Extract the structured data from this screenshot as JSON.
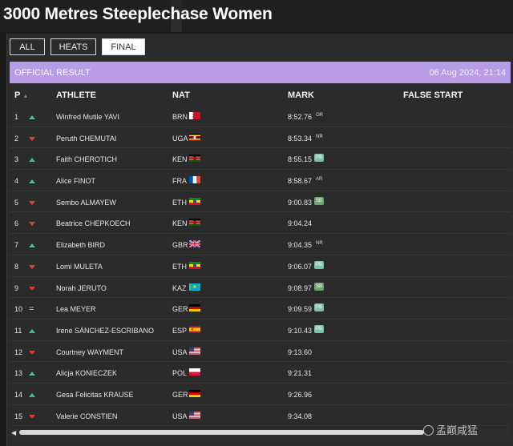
{
  "page": {
    "title": "3000 Metres Steeplechase Women"
  },
  "tabs": [
    {
      "label": "ALL",
      "active": false
    },
    {
      "label": "HEATS",
      "active": false
    },
    {
      "label": "FINAL",
      "active": true
    }
  ],
  "banner": {
    "label": "OFFICIAL RESULT",
    "date": "06 Aug 2024, 21:14",
    "color": "#b89ce6"
  },
  "columns": {
    "pos": "P",
    "athlete": "ATHLETE",
    "nat": "NAT",
    "mark": "MARK",
    "false_start": "FALSE START"
  },
  "results": [
    {
      "pos": "1",
      "trend": "up",
      "name": "Winfred Mutile YAVI",
      "nat": "BRN",
      "flag": "bahrain-flag",
      "mark": "8:52.76",
      "badge": "OR",
      "badge_type": "rec"
    },
    {
      "pos": "2",
      "trend": "down",
      "name": "Peruth CHEMUTAI",
      "nat": "UGA",
      "flag": "uganda-flag",
      "mark": "8:53.34",
      "badge": "NR",
      "badge_type": "rec"
    },
    {
      "pos": "3",
      "trend": "up",
      "name": "Faith CHEROTICH",
      "nat": "KEN",
      "flag": "kenya-flag",
      "mark": "8:55.15",
      "badge": "PB",
      "badge_type": "pb"
    },
    {
      "pos": "4",
      "trend": "up",
      "name": "Alice FINOT",
      "nat": "FRA",
      "flag": "france-flag",
      "mark": "8:58.67",
      "badge": "AR",
      "badge_type": "rec"
    },
    {
      "pos": "5",
      "trend": "down",
      "name": "Sembo ALMAYEW",
      "nat": "ETH",
      "flag": "ethiopia-flag",
      "mark": "9:00.83",
      "badge": "SB",
      "badge_type": "sb"
    },
    {
      "pos": "6",
      "trend": "down",
      "name": "Beatrice CHEPKOECH",
      "nat": "KEN",
      "flag": "kenya-flag",
      "mark": "9:04.24",
      "badge": "",
      "badge_type": ""
    },
    {
      "pos": "7",
      "trend": "up",
      "name": "Elizabeth BIRD",
      "nat": "GBR",
      "flag": "uk-flag",
      "mark": "9:04.35",
      "badge": "NR",
      "badge_type": "rec"
    },
    {
      "pos": "8",
      "trend": "down",
      "name": "Lomi MULETA",
      "nat": "ETH",
      "flag": "ethiopia-flag",
      "mark": "9:06.07",
      "badge": "PB",
      "badge_type": "pb"
    },
    {
      "pos": "9",
      "trend": "down",
      "name": "Norah JERUTO",
      "nat": "KAZ",
      "flag": "kazakhstan-flag",
      "mark": "9:08.97",
      "badge": "SB",
      "badge_type": "sb"
    },
    {
      "pos": "10",
      "trend": "same",
      "name": "Lea MEYER",
      "nat": "GER",
      "flag": "germany-flag",
      "mark": "9:09.59",
      "badge": "PB",
      "badge_type": "pb"
    },
    {
      "pos": "11",
      "trend": "up",
      "name": "Irene SÁNCHEZ-ESCRIBANO",
      "nat": "ESP",
      "flag": "spain-flag",
      "mark": "9:10.43",
      "badge": "PB",
      "badge_type": "pb"
    },
    {
      "pos": "12",
      "trend": "down",
      "name": "Courtney WAYMENT",
      "nat": "USA",
      "flag": "usa-flag",
      "mark": "9:13.60",
      "badge": "",
      "badge_type": ""
    },
    {
      "pos": "13",
      "trend": "up",
      "name": "Alicja KONIECZEK",
      "nat": "POL",
      "flag": "poland-flag",
      "mark": "9:21.31",
      "badge": "",
      "badge_type": ""
    },
    {
      "pos": "14",
      "trend": "up",
      "name": "Gesa Felicitas KRAUSE",
      "nat": "GER",
      "flag": "germany-flag",
      "mark": "9:26.96",
      "badge": "",
      "badge_type": ""
    },
    {
      "pos": "15",
      "trend": "down",
      "name": "Valerie CONSTIEN",
      "nat": "USA",
      "flag": "usa-flag",
      "mark": "9:34.08",
      "badge": "",
      "badge_type": ""
    }
  ],
  "watermark": {
    "text": "孟巅咸猛"
  }
}
